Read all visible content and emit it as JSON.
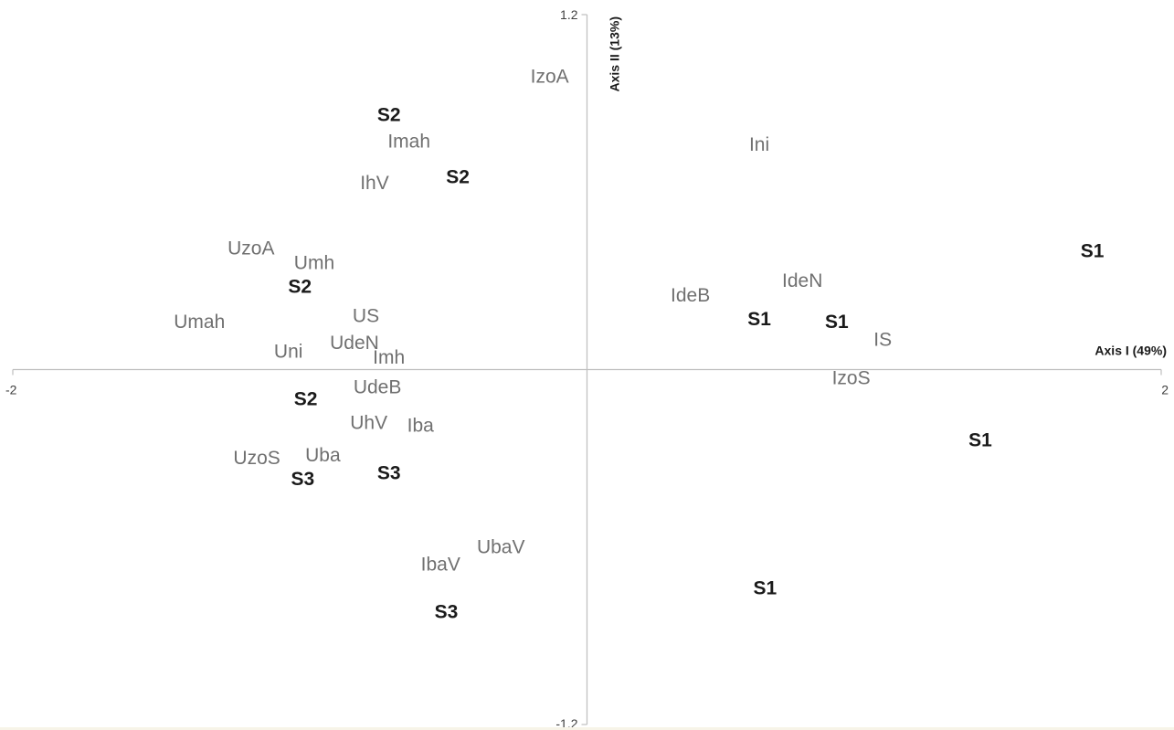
{
  "chart_data": {
    "type": "scatter",
    "xlabel": "Axis I (49%)",
    "ylabel": "Axis II (13%)",
    "xlim": [
      -2,
      2
    ],
    "ylim": [
      -1.2,
      1.2
    ],
    "x_tick_labels": [
      "-2",
      "2"
    ],
    "y_tick_labels": [
      "1.2",
      "-1.2"
    ],
    "grid": false,
    "series": [
      {
        "name": "",
        "style": "variable",
        "color": "#707070",
        "points": [
          {
            "label": "IzoA",
            "x": -0.13,
            "y": 0.99
          },
          {
            "label": "Imah",
            "x": -0.62,
            "y": 0.77
          },
          {
            "label": "IhV",
            "x": -0.74,
            "y": 0.63
          },
          {
            "label": "Ini",
            "x": 0.6,
            "y": 0.76
          },
          {
            "label": "UzoA",
            "x": -1.17,
            "y": 0.41
          },
          {
            "label": "Umh",
            "x": -0.95,
            "y": 0.36
          },
          {
            "label": "IdeN",
            "x": 0.75,
            "y": 0.3
          },
          {
            "label": "IdeB",
            "x": 0.36,
            "y": 0.25
          },
          {
            "label": "US",
            "x": -0.77,
            "y": 0.18
          },
          {
            "label": "Umah",
            "x": -1.35,
            "y": 0.16
          },
          {
            "label": "IS",
            "x": 1.03,
            "y": 0.1
          },
          {
            "label": "UdeN",
            "x": -0.81,
            "y": 0.09
          },
          {
            "label": "Uni",
            "x": -1.04,
            "y": 0.06
          },
          {
            "label": "Imh",
            "x": -0.69,
            "y": 0.04
          },
          {
            "label": "IzoS",
            "x": 0.92,
            "y": -0.03
          },
          {
            "label": "UdeB",
            "x": -0.73,
            "y": -0.06
          },
          {
            "label": "UhV",
            "x": -0.76,
            "y": -0.18
          },
          {
            "label": "Iba",
            "x": -0.58,
            "y": -0.19
          },
          {
            "label": "Uba",
            "x": -0.92,
            "y": -0.29
          },
          {
            "label": "UzoS",
            "x": -1.15,
            "y": -0.3
          },
          {
            "label": "UbaV",
            "x": -0.3,
            "y": -0.6
          },
          {
            "label": "IbaV",
            "x": -0.51,
            "y": -0.66
          }
        ]
      },
      {
        "name": "",
        "style": "site",
        "color": "#1a1a1a",
        "points": [
          {
            "label": "S2",
            "x": -0.69,
            "y": 0.86
          },
          {
            "label": "S2",
            "x": -0.45,
            "y": 0.65
          },
          {
            "label": "S1",
            "x": 1.76,
            "y": 0.4
          },
          {
            "label": "S2",
            "x": -1.0,
            "y": 0.28
          },
          {
            "label": "S1",
            "x": 0.6,
            "y": 0.17
          },
          {
            "label": "S1",
            "x": 0.87,
            "y": 0.16
          },
          {
            "label": "S2",
            "x": -0.98,
            "y": -0.1
          },
          {
            "label": "S1",
            "x": 1.37,
            "y": -0.24
          },
          {
            "label": "S3",
            "x": -0.69,
            "y": -0.35
          },
          {
            "label": "S3",
            "x": -0.99,
            "y": -0.37
          },
          {
            "label": "S1",
            "x": 0.62,
            "y": -0.74
          },
          {
            "label": "S3",
            "x": -0.49,
            "y": -0.82
          }
        ]
      }
    ]
  }
}
